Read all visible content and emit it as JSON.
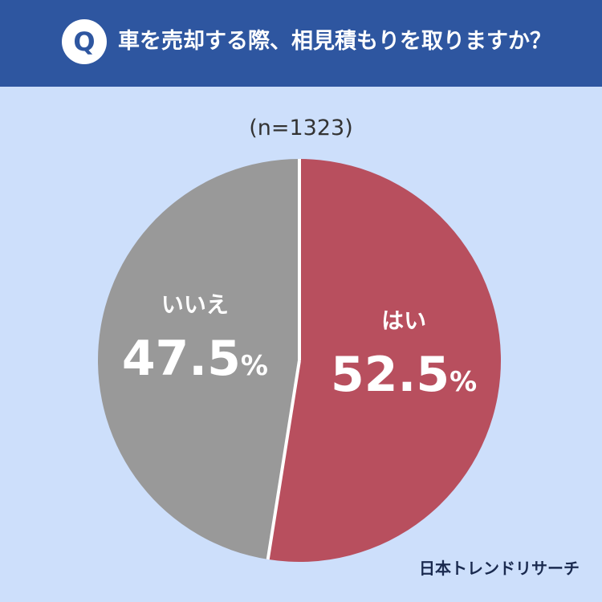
{
  "header": {
    "badge": "Q",
    "question": "車を売却する際、相見積もりを取りますか？"
  },
  "sample_label": "(n=1323)",
  "footer": {
    "brand": "日本トレンドリサーチ"
  },
  "colors": {
    "header_bg": "#2e56a0",
    "page_bg": "#cddffb",
    "yes": "#b84f5e",
    "no": "#999999"
  },
  "chart_data": {
    "type": "pie",
    "slices": [
      {
        "label": "はい",
        "value": 52.5,
        "value_label": "52.5%",
        "color": "#b84f5e"
      },
      {
        "label": "いいえ",
        "value": 47.5,
        "value_label": "47.5%",
        "color": "#999999"
      }
    ]
  }
}
